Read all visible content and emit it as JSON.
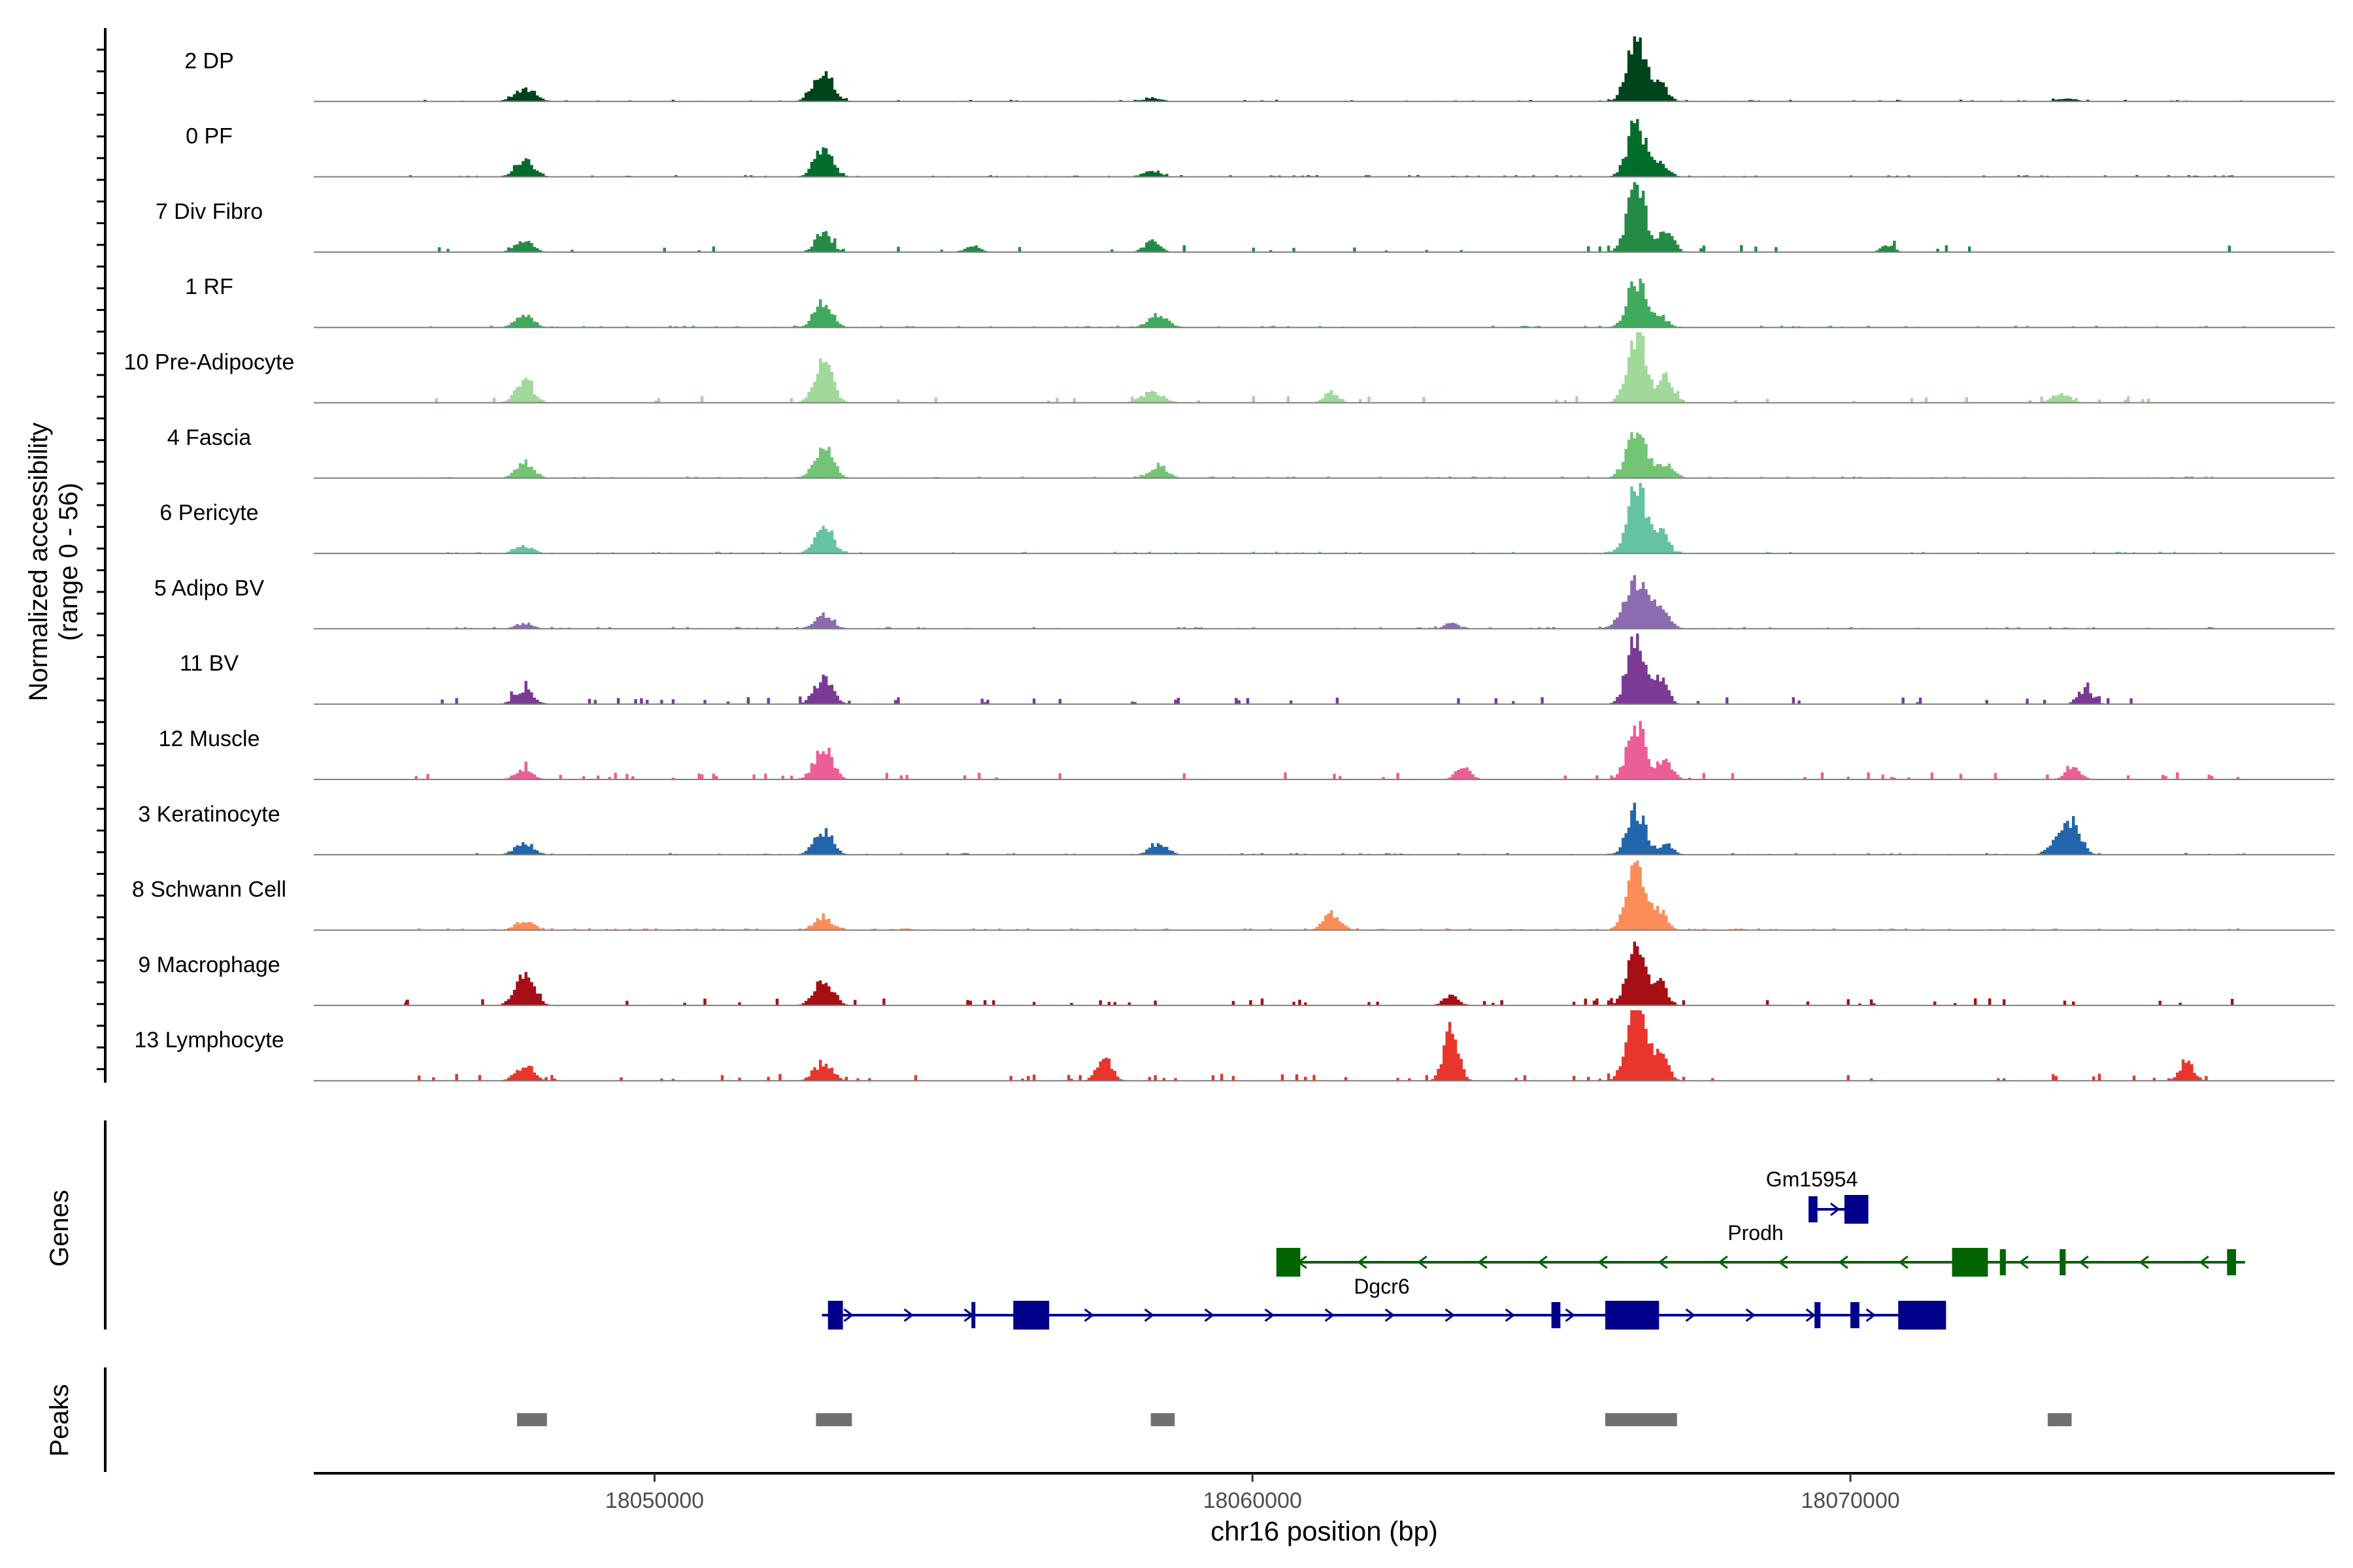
{
  "chart_data": {
    "type": "area",
    "title": "",
    "chromosome": "chr16",
    "xlabel": "chr16 position (bp)",
    "xlim": [
      18044300,
      18078100
    ],
    "x_ticks": [
      18050000,
      18060000,
      18070000
    ],
    "x_tick_labels": [
      "18050000",
      "18060000",
      "18070000"
    ],
    "ylabel_line1": "Normalized accessibility",
    "ylabel_line2": "(range 0 - 56)",
    "ylim": [
      0,
      56
    ],
    "panel_labels": {
      "genes": "Genes",
      "peaks": "Peaks"
    },
    "tracks": [
      {
        "name": "2 DP",
        "color": "#00441b",
        "noise": 0.03,
        "wide_noise": false,
        "peaks": [
          [
            18047800,
            180,
            7
          ],
          [
            18052800,
            160,
            18
          ],
          [
            18058300,
            150,
            2
          ],
          [
            18066400,
            150,
            36
          ],
          [
            18066800,
            120,
            10
          ],
          [
            18073600,
            150,
            2
          ]
        ]
      },
      {
        "name": "0 PF",
        "color": "#006d2c",
        "noise": 0.03,
        "wide_noise": false,
        "peaks": [
          [
            18047800,
            150,
            10
          ],
          [
            18052800,
            150,
            15
          ],
          [
            18058300,
            150,
            3
          ],
          [
            18066400,
            150,
            30
          ],
          [
            18066800,
            130,
            8
          ]
        ]
      },
      {
        "name": "7 Div Fibro",
        "color": "#238b45",
        "noise": 0.06,
        "wide_noise": true,
        "peaks": [
          [
            18047800,
            150,
            6
          ],
          [
            18052800,
            130,
            12
          ],
          [
            18055300,
            120,
            4
          ],
          [
            18058300,
            130,
            6
          ],
          [
            18066400,
            150,
            38
          ],
          [
            18066900,
            120,
            12
          ],
          [
            18070600,
            100,
            4
          ]
        ]
      },
      {
        "name": "1 RF",
        "color": "#41ab5d",
        "noise": 0.03,
        "wide_noise": false,
        "peaks": [
          [
            18047800,
            150,
            7
          ],
          [
            18052800,
            150,
            14
          ],
          [
            18058400,
            160,
            7
          ],
          [
            18066400,
            150,
            26
          ],
          [
            18066800,
            120,
            6
          ]
        ]
      },
      {
        "name": "10 Pre-Adipocyte",
        "color": "#a1d99b",
        "noise": 0.06,
        "wide_noise": true,
        "peaks": [
          [
            18047800,
            150,
            12
          ],
          [
            18052800,
            150,
            22
          ],
          [
            18058300,
            180,
            6
          ],
          [
            18061300,
            120,
            6
          ],
          [
            18066400,
            150,
            40
          ],
          [
            18066900,
            120,
            14
          ],
          [
            18073500,
            150,
            5
          ]
        ]
      },
      {
        "name": "4 Fascia",
        "color": "#74c476",
        "noise": 0.03,
        "wide_noise": false,
        "peaks": [
          [
            18047800,
            150,
            8
          ],
          [
            18052800,
            150,
            18
          ],
          [
            18058400,
            150,
            7
          ],
          [
            18066400,
            170,
            24
          ],
          [
            18066900,
            130,
            8
          ]
        ]
      },
      {
        "name": "6 Pericyte",
        "color": "#66c2a4",
        "noise": 0.03,
        "wide_noise": false,
        "peaks": [
          [
            18047800,
            150,
            4
          ],
          [
            18052800,
            140,
            18
          ],
          [
            18066400,
            150,
            40
          ],
          [
            18066800,
            120,
            12
          ]
        ]
      },
      {
        "name": "5 Adipo BV",
        "color": "#8c6bb1",
        "noise": 0.03,
        "wide_noise": false,
        "peaks": [
          [
            18047800,
            150,
            3
          ],
          [
            18052800,
            150,
            8
          ],
          [
            18063300,
            120,
            3
          ],
          [
            18066400,
            200,
            26
          ],
          [
            18066800,
            150,
            10
          ]
        ]
      },
      {
        "name": "11 BV",
        "color": "#7a3a96",
        "noise": 0.1,
        "wide_noise": true,
        "peaks": [
          [
            18047800,
            150,
            8
          ],
          [
            18052800,
            150,
            14
          ],
          [
            18066400,
            150,
            38
          ],
          [
            18066800,
            120,
            14
          ],
          [
            18073900,
            120,
            8
          ]
        ]
      },
      {
        "name": "12 Muscle",
        "color": "#ec5f96",
        "noise": 0.08,
        "wide_noise": true,
        "peaks": [
          [
            18047800,
            150,
            5
          ],
          [
            18052800,
            150,
            18
          ],
          [
            18063500,
            120,
            7
          ],
          [
            18066400,
            150,
            32
          ],
          [
            18066900,
            120,
            10
          ],
          [
            18073700,
            120,
            8
          ]
        ]
      },
      {
        "name": "3 Keratinocyte",
        "color": "#2166ac",
        "noise": 0.03,
        "wide_noise": false,
        "peaks": [
          [
            18047800,
            150,
            7
          ],
          [
            18052800,
            150,
            13
          ],
          [
            18058400,
            150,
            6
          ],
          [
            18066400,
            150,
            24
          ],
          [
            18066900,
            120,
            6
          ],
          [
            18073600,
            180,
            20
          ]
        ]
      },
      {
        "name": "8 Schwann Cell",
        "color": "#fc8d59",
        "noise": 0.05,
        "wide_noise": false,
        "peaks": [
          [
            18047800,
            150,
            5
          ],
          [
            18052800,
            150,
            7
          ],
          [
            18061300,
            140,
            9
          ],
          [
            18066400,
            150,
            38
          ],
          [
            18066800,
            120,
            10
          ]
        ]
      },
      {
        "name": "9 Macrophage",
        "color": "#a50f15",
        "noise": 0.1,
        "wide_noise": true,
        "peaks": [
          [
            18047800,
            150,
            20
          ],
          [
            18052800,
            150,
            14
          ],
          [
            18063300,
            120,
            6
          ],
          [
            18066400,
            150,
            36
          ],
          [
            18066800,
            120,
            12
          ]
        ]
      },
      {
        "name": "13 Lymphocyte",
        "color": "#e8362d",
        "noise": 0.1,
        "wide_noise": true,
        "peaks": [
          [
            18047800,
            150,
            8
          ],
          [
            18052800,
            150,
            10
          ],
          [
            18057500,
            120,
            14
          ],
          [
            18063300,
            120,
            28
          ],
          [
            18066400,
            150,
            46
          ],
          [
            18066800,
            120,
            16
          ],
          [
            18075600,
            120,
            10
          ]
        ]
      }
    ],
    "genes": [
      {
        "name": "Gm15954",
        "strand": "+",
        "color": "#00008b",
        "start": 18069300,
        "end": 18070300,
        "exons": [
          [
            18069300,
            18069450
          ],
          [
            18069900,
            18070300
          ]
        ],
        "row": 0
      },
      {
        "name": "Prodh",
        "strand": "-",
        "color": "#006400",
        "start": 18060400,
        "end": 18076600,
        "exons": [
          [
            18060400,
            18060800
          ],
          [
            18071700,
            18072300
          ],
          [
            18072500,
            18072600
          ],
          [
            18073500,
            18073600
          ],
          [
            18076300,
            18076450
          ]
        ],
        "row": 1
      },
      {
        "name": "Dgcr6",
        "strand": "+",
        "color": "#00008b",
        "start": 18052800,
        "end": 18071600,
        "exons": [
          [
            18052900,
            18053150
          ],
          [
            18055300,
            18055350
          ],
          [
            18056000,
            18056600
          ],
          [
            18065000,
            18065150
          ],
          [
            18065900,
            18066800
          ],
          [
            18069400,
            18069500
          ],
          [
            18070000,
            18070150
          ],
          [
            18070800,
            18071600
          ]
        ],
        "row": 2
      }
    ],
    "peaks_regions": [
      [
        18047700,
        18048200
      ],
      [
        18052700,
        18053300
      ],
      [
        18058300,
        18058700
      ],
      [
        18065900,
        18067100
      ],
      [
        18073300,
        18073700
      ]
    ]
  }
}
